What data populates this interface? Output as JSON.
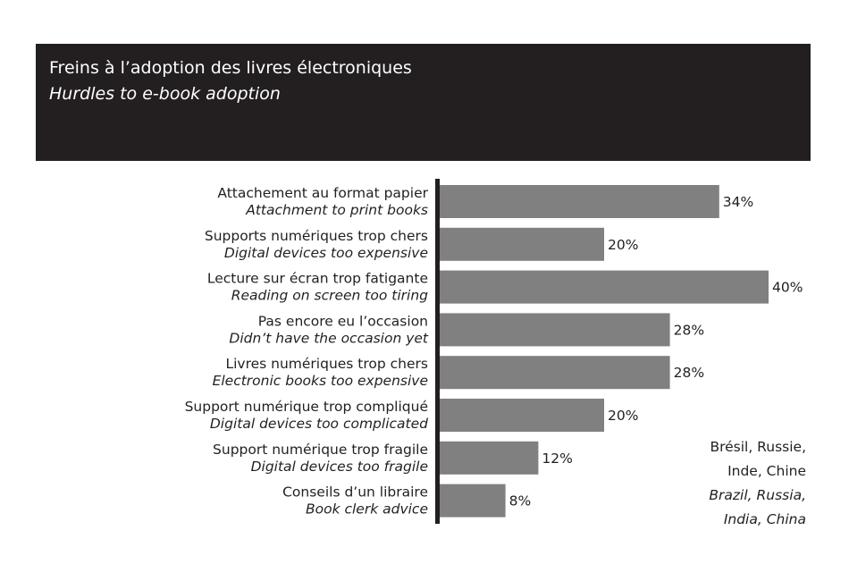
{
  "header": {
    "title_fr": "Freins à l’adoption des livres électroniques",
    "title_en": "Hurdles to e-book adoption"
  },
  "note": {
    "fr_line1": "Brésil, Russie,",
    "fr_line2": "Inde, Chine",
    "en_line1": "Brazil, Russia,",
    "en_line2": "India, China"
  },
  "colors": {
    "header_bg": "#231f20",
    "bar": "#808080",
    "axis": "#231f20",
    "text": "#231f20"
  },
  "chart_data": {
    "type": "bar",
    "orientation": "horizontal",
    "categories": [
      {
        "fr": "Attachement au format papier",
        "en": "Attachment to print books"
      },
      {
        "fr": "Supports numériques trop chers",
        "en": "Digital devices too expensive"
      },
      {
        "fr": "Lecture sur écran trop fatigante",
        "en": "Reading on screen too tiring"
      },
      {
        "fr": "Pas encore eu l’occasion",
        "en": "Didn’t have the occasion yet"
      },
      {
        "fr": "Livres numériques trop chers",
        "en": "Electronic books too expensive"
      },
      {
        "fr": "Support numérique trop compliqué",
        "en": "Digital devices too complicated"
      },
      {
        "fr": "Support numérique trop fragile",
        "en": "Digital devices too fragile"
      },
      {
        "fr": "Conseils d’un libraire",
        "en": "Book clerk advice"
      }
    ],
    "values": [
      34,
      20,
      40,
      28,
      28,
      20,
      12,
      8
    ],
    "value_labels": [
      "34%",
      "20%",
      "40%",
      "28%",
      "28%",
      "20%",
      "12%",
      "8%"
    ],
    "xlim": [
      0,
      40
    ],
    "grid": false,
    "legend": "none"
  }
}
